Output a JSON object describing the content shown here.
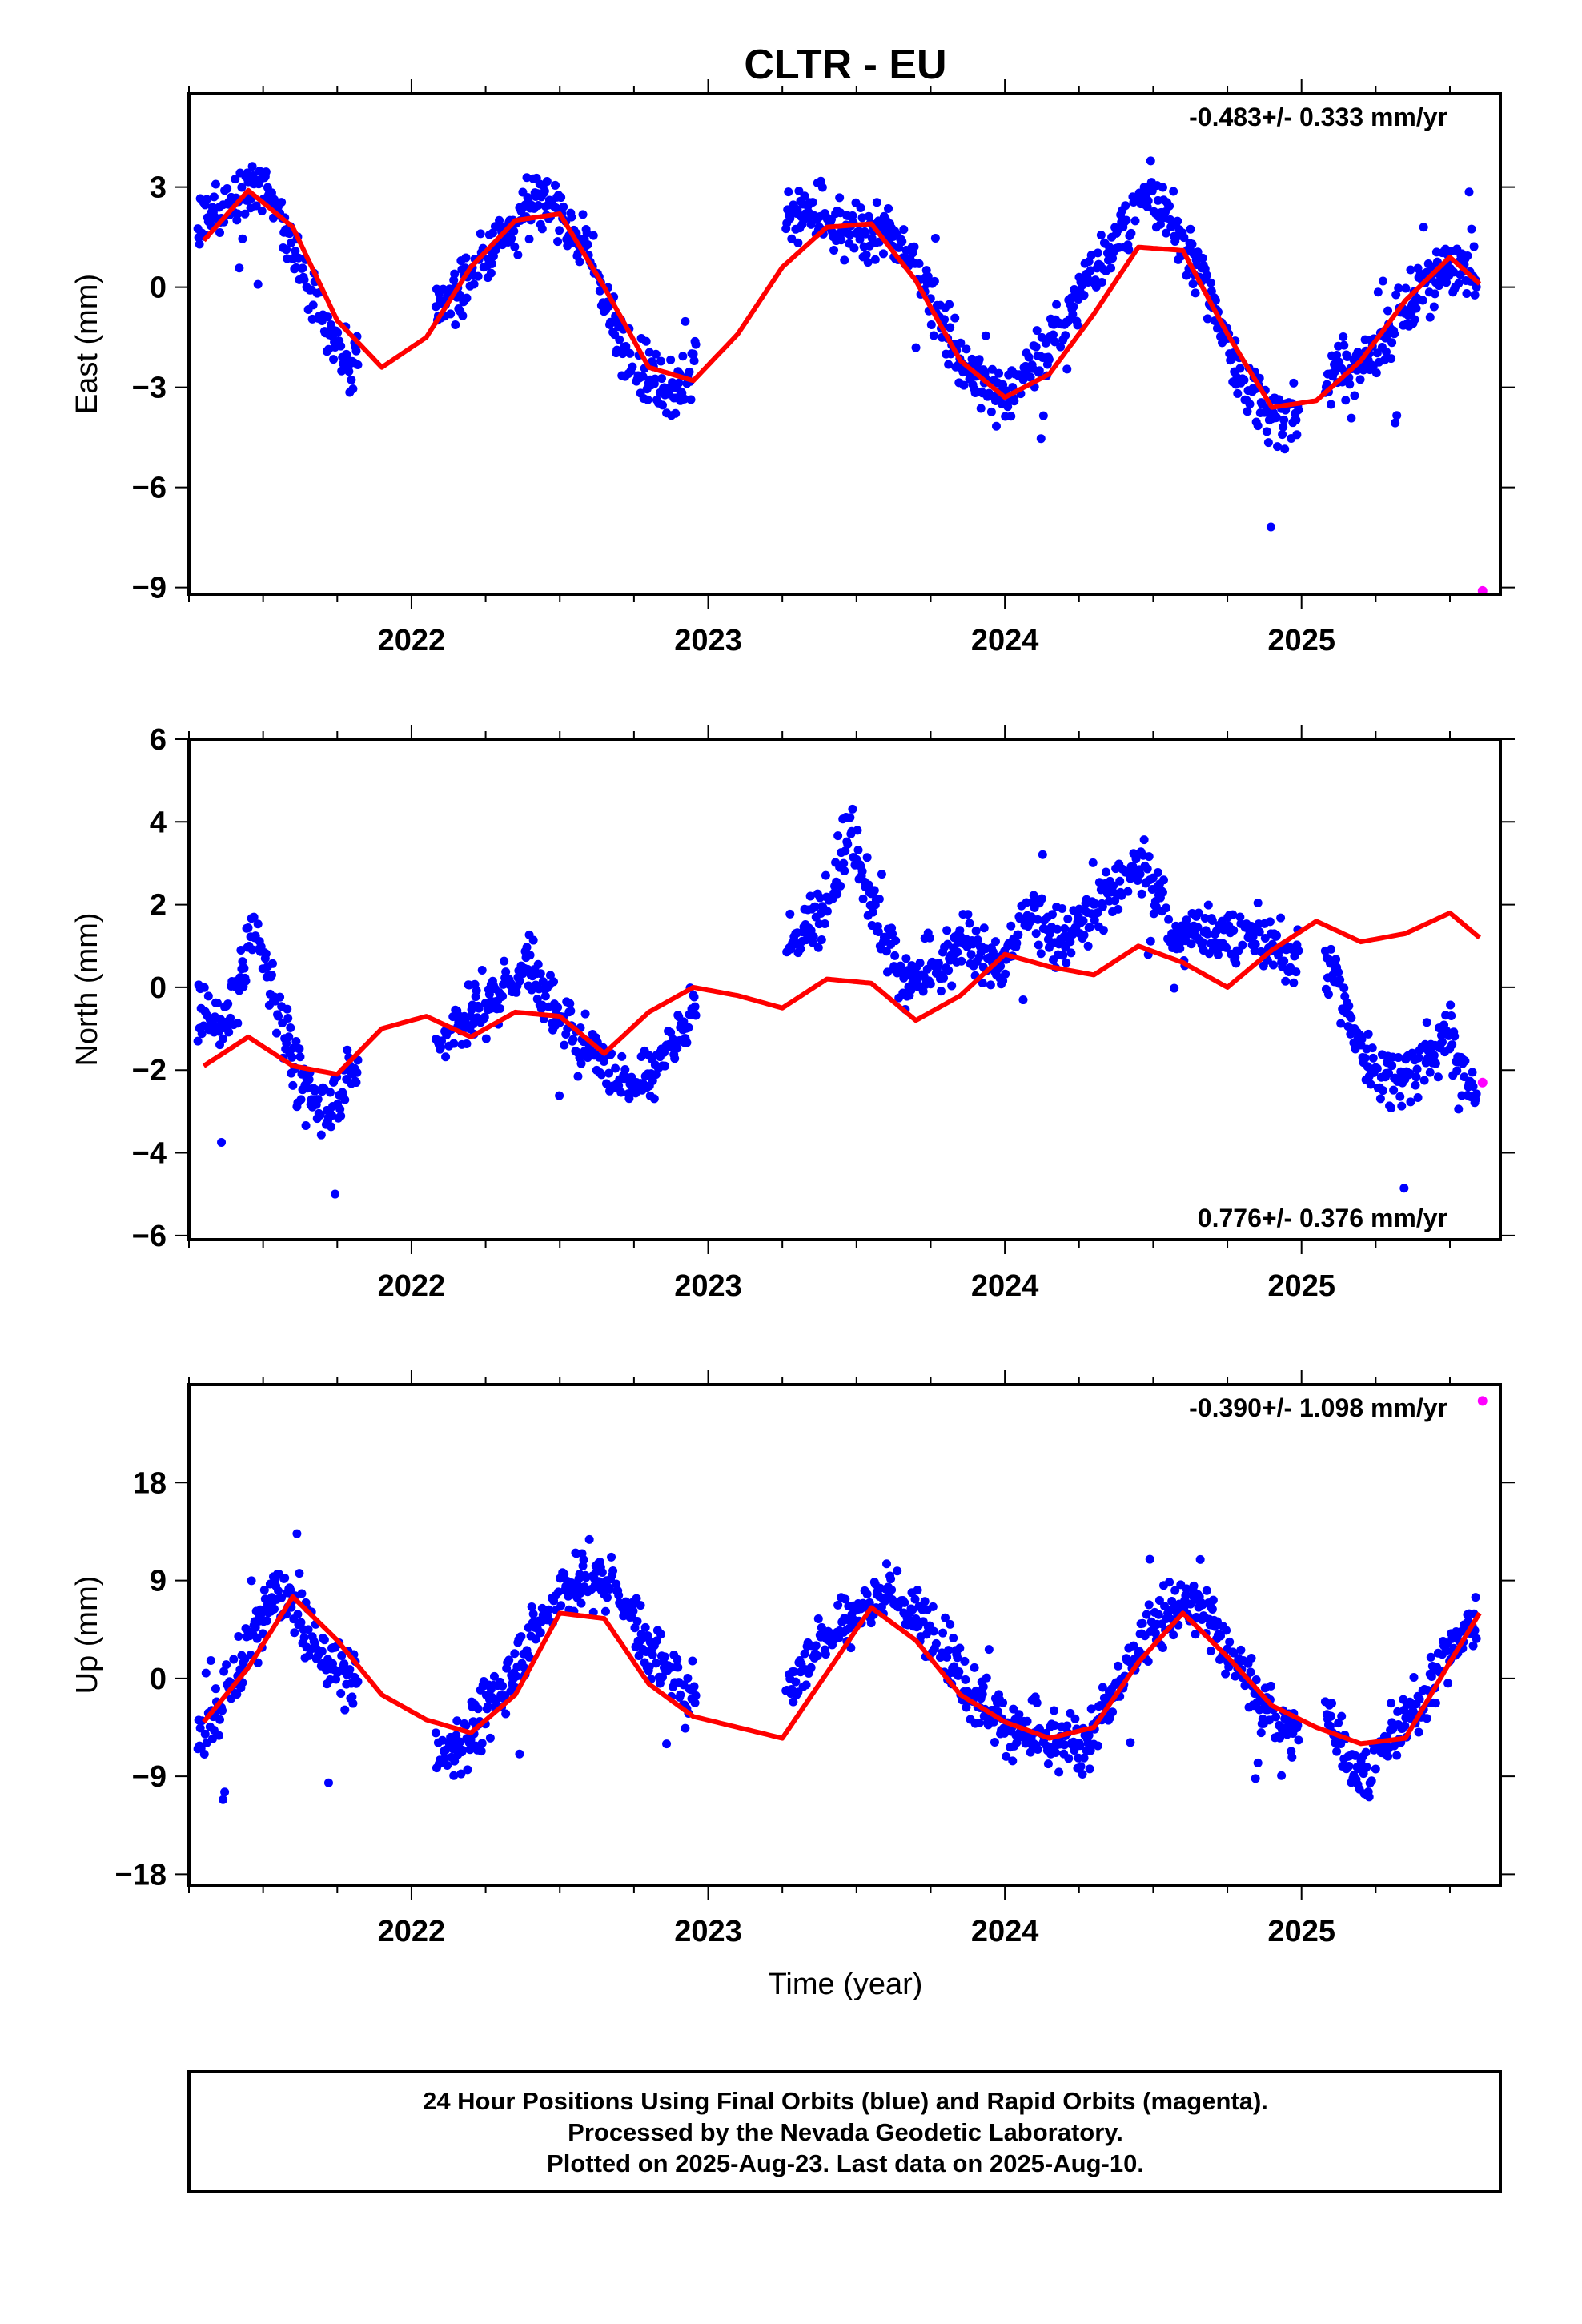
{
  "title": "CLTR - EU",
  "x_axis_label": "Time (year)",
  "footer": {
    "line1": "24 Hour Positions Using Final Orbits (blue) and Rapid Orbits (magenta).",
    "line2": "Processed by the Nevada Geodetic Laboratory.",
    "line3": "Plotted on 2025-Aug-23. Last data on 2025-Aug-10."
  },
  "colors": {
    "final": "#0000ff",
    "rapid": "#ff00ff",
    "model": "#ff0000",
    "frame": "#000000"
  },
  "chart_data": [
    {
      "type": "scatter",
      "component": "east",
      "ylabel": "East (mm)",
      "rate_text": "-0.483+/- 0.333 mm/yr",
      "xlim": [
        2021.25,
        2025.67
      ],
      "ylim": [
        -9.2,
        5.8
      ],
      "xticks": [
        2022,
        2023,
        2024,
        2025
      ],
      "yticks": [
        3,
        0,
        -3,
        -6,
        -9
      ],
      "ytick_labels": [
        "3",
        "0",
        "-3",
        "-6",
        "-9"
      ],
      "final_orbit_samples": {
        "x": [
          2021.29,
          2021.38,
          2021.47,
          2021.55,
          2021.63,
          2021.72,
          2021.8,
          2022.1,
          2022.2,
          2022.3,
          2022.4,
          2022.5,
          2022.6,
          2022.7,
          2022.8,
          2022.9,
          2023.28,
          2023.38,
          2023.48,
          2023.58,
          2023.68,
          2023.78,
          2023.88,
          2023.98,
          2024.08,
          2024.18,
          2024.28,
          2024.38,
          2024.48,
          2024.58,
          2024.68,
          2024.78,
          2024.88,
          2024.98,
          2025.1,
          2025.2,
          2025.3,
          2025.4,
          2025.5,
          2025.58
        ],
        "y": [
          1.8,
          2.6,
          3.0,
          2.1,
          0.7,
          -1.4,
          -2.4,
          -0.6,
          0.3,
          1.5,
          2.6,
          2.3,
          0.9,
          -1.6,
          -2.6,
          -3.1,
          2.5,
          1.9,
          1.6,
          1.7,
          0.9,
          -0.8,
          -2.6,
          -3.3,
          -2.5,
          -1.3,
          0.2,
          1.6,
          2.7,
          1.8,
          0.0,
          -2.5,
          -3.7,
          -3.9,
          -2.6,
          -2.3,
          -1.3,
          -0.1,
          0.7,
          0.3
        ]
      },
      "rapid_orbit_points": {
        "x": [
          2025.61
        ],
        "y": [
          -9.1
        ]
      },
      "model_curve": {
        "x": [
          2021.3,
          2021.45,
          2021.6,
          2021.75,
          2021.9,
          2022.05,
          2022.2,
          2022.35,
          2022.5,
          2022.65,
          2022.8,
          2022.95,
          2023.1,
          2023.25,
          2023.4,
          2023.55,
          2023.7,
          2023.85,
          2024.0,
          2024.15,
          2024.3,
          2024.45,
          2024.6,
          2024.75,
          2024.9,
          2025.05,
          2025.2,
          2025.35,
          2025.5,
          2025.6
        ],
        "y": [
          1.4,
          2.9,
          1.8,
          -1.0,
          -2.4,
          -1.5,
          0.6,
          2.0,
          2.2,
          0.0,
          -2.4,
          -2.8,
          -1.4,
          0.6,
          1.8,
          1.9,
          0.2,
          -2.2,
          -3.3,
          -2.6,
          -0.8,
          1.2,
          1.1,
          -1.4,
          -3.6,
          -3.4,
          -2.2,
          -0.4,
          0.9,
          0.1
        ]
      }
    },
    {
      "type": "scatter",
      "component": "north",
      "ylabel": "North (mm)",
      "rate_text": "0.776+/- 0.376 mm/yr",
      "xlim": [
        2021.25,
        2025.67
      ],
      "ylim": [
        -6.1,
        6.0
      ],
      "xticks": [
        2022,
        2023,
        2024,
        2025
      ],
      "yticks": [
        6,
        4,
        2,
        0,
        -2,
        -4,
        -6
      ],
      "ytick_labels": [
        "6",
        "4",
        "2",
        "0",
        "-2",
        "-4",
        "-6"
      ],
      "final_orbit_samples": {
        "x": [
          2021.29,
          2021.38,
          2021.47,
          2021.55,
          2021.63,
          2021.72,
          2021.8,
          2022.1,
          2022.2,
          2022.3,
          2022.4,
          2022.5,
          2022.6,
          2022.7,
          2022.8,
          2022.9,
          2023.28,
          2023.38,
          2023.48,
          2023.58,
          2023.68,
          2023.78,
          2023.88,
          2023.98,
          2024.08,
          2024.18,
          2024.28,
          2024.38,
          2024.48,
          2024.58,
          2024.68,
          2024.78,
          2024.88,
          2024.98,
          2025.1,
          2025.2,
          2025.3,
          2025.4,
          2025.5,
          2025.58
        ],
        "y": [
          -0.6,
          -0.9,
          1.5,
          -0.3,
          -2.4,
          -2.9,
          -2.1,
          -1.3,
          -0.6,
          -0.2,
          0.7,
          -0.9,
          -1.4,
          -2.3,
          -2.2,
          -1.0,
          1.0,
          1.8,
          3.9,
          1.4,
          0.1,
          0.4,
          1.2,
          0.3,
          1.9,
          1.2,
          1.6,
          2.6,
          2.9,
          1.1,
          1.4,
          1.3,
          1.0,
          0.8,
          0.5,
          -1.6,
          -2.3,
          -1.8,
          -1.2,
          -2.6
        ]
      },
      "rapid_orbit_points": {
        "x": [
          2025.61
        ],
        "y": [
          -2.3
        ]
      },
      "model_curve": {
        "x": [
          2021.3,
          2021.45,
          2021.6,
          2021.75,
          2021.9,
          2022.05,
          2022.2,
          2022.35,
          2022.5,
          2022.65,
          2022.8,
          2022.95,
          2023.1,
          2023.25,
          2023.4,
          2023.55,
          2023.7,
          2023.85,
          2024.0,
          2024.15,
          2024.3,
          2024.45,
          2024.6,
          2024.75,
          2024.9,
          2025.05,
          2025.2,
          2025.35,
          2025.5,
          2025.6
        ],
        "y": [
          -1.9,
          -1.2,
          -1.9,
          -2.1,
          -1.0,
          -0.7,
          -1.2,
          -0.6,
          -0.7,
          -1.6,
          -0.6,
          0.0,
          -0.2,
          -0.5,
          0.2,
          0.1,
          -0.8,
          -0.2,
          0.8,
          0.5,
          0.3,
          1.0,
          0.6,
          0.0,
          0.9,
          1.6,
          1.1,
          1.3,
          1.8,
          1.2
        ]
      }
    },
    {
      "type": "scatter",
      "component": "up",
      "ylabel": "Up (mm)",
      "rate_text": "-0.390+/- 1.098 mm/yr",
      "xlim": [
        2021.25,
        2025.67
      ],
      "ylim": [
        -19.0,
        27.0
      ],
      "xticks": [
        2022,
        2023,
        2024,
        2025
      ],
      "yticks": [
        18,
        9,
        0,
        -9,
        -18
      ],
      "ytick_labels": [
        "18",
        "9",
        "0",
        "-9",
        "-18"
      ],
      "final_orbit_samples": {
        "x": [
          2021.29,
          2021.38,
          2021.47,
          2021.55,
          2021.63,
          2021.72,
          2021.8,
          2022.1,
          2022.2,
          2022.3,
          2022.4,
          2022.5,
          2022.6,
          2022.7,
          2022.8,
          2022.9,
          2023.28,
          2023.38,
          2023.48,
          2023.58,
          2023.68,
          2023.78,
          2023.88,
          2023.98,
          2024.08,
          2024.18,
          2024.28,
          2024.38,
          2024.48,
          2024.58,
          2024.68,
          2024.78,
          2024.88,
          2024.98,
          2025.1,
          2025.2,
          2025.3,
          2025.4,
          2025.5,
          2025.58
        ],
        "y": [
          -5.0,
          -1.5,
          4.0,
          8.5,
          5.0,
          1.5,
          0.0,
          -7.0,
          -4.5,
          -1.0,
          3.5,
          8.0,
          9.5,
          8.0,
          3.0,
          -1.0,
          -1.0,
          3.5,
          5.5,
          8.0,
          6.0,
          4.0,
          -1.0,
          -3.5,
          -5.5,
          -6.0,
          -6.0,
          -1.0,
          4.5,
          7.0,
          6.0,
          1.5,
          -3.0,
          -5.0,
          -4.0,
          -9.0,
          -6.0,
          -2.0,
          2.5,
          5.0
        ]
      },
      "rapid_orbit_points": {
        "x": [
          2025.61
        ],
        "y": [
          25.5
        ]
      },
      "model_curve": {
        "x": [
          2021.3,
          2021.45,
          2021.6,
          2021.75,
          2021.9,
          2022.05,
          2022.2,
          2022.35,
          2022.5,
          2022.65,
          2022.8,
          2022.95,
          2023.1,
          2023.25,
          2023.4,
          2023.55,
          2023.7,
          2023.85,
          2024.0,
          2024.15,
          2024.3,
          2024.45,
          2024.6,
          2024.75,
          2024.9,
          2025.05,
          2025.2,
          2025.35,
          2025.5,
          2025.6
        ],
        "y": [
          -4.0,
          1.0,
          7.5,
          3.5,
          -1.5,
          -3.8,
          -5.0,
          -1.5,
          6.0,
          5.5,
          -0.5,
          -3.5,
          -4.5,
          -5.5,
          0.5,
          6.5,
          3.5,
          -1.5,
          -4.0,
          -5.5,
          -4.5,
          1.5,
          6.0,
          2.0,
          -2.5,
          -4.5,
          -6.0,
          -5.5,
          1.5,
          6.0
        ]
      }
    }
  ]
}
